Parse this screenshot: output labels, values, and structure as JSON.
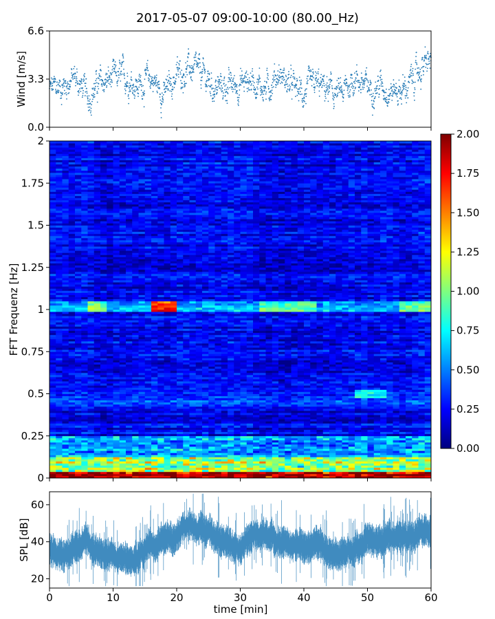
{
  "chart_data": {
    "title": "2017-05-07 09:00-10:00 (80.00_Hz)",
    "panels": [
      {
        "type": "scatter",
        "ylabel": "Wind [m/s]",
        "ylim": [
          0,
          6.6
        ],
        "yticks": [
          0.0,
          3.3,
          6.6
        ],
        "ytick_labels": [
          "0.0",
          "3.3",
          "6.6"
        ],
        "xlim": [
          0,
          60
        ],
        "marker_color": "#1f77b4",
        "series_profile": {
          "x": [
            0,
            2,
            4,
            6,
            8,
            10,
            12,
            14,
            16,
            18,
            20,
            22,
            24,
            26,
            28,
            30,
            32,
            34,
            36,
            38,
            40,
            42,
            44,
            46,
            48,
            50,
            52,
            54,
            56,
            58,
            60
          ],
          "y": [
            2.6,
            2.8,
            3.4,
            2.1,
            3.0,
            3.3,
            3.5,
            2.8,
            3.4,
            2.2,
            3.6,
            4.0,
            3.6,
            2.7,
            2.8,
            3.0,
            3.3,
            2.6,
            3.7,
            2.8,
            2.3,
            2.9,
            2.5,
            2.2,
            3.5,
            2.7,
            2.9,
            2.5,
            2.6,
            3.8,
            4.6
          ]
        }
      },
      {
        "type": "heatmap",
        "ylabel": "FFT Frequenz [Hz]",
        "ylim": [
          0,
          2
        ],
        "yticks": [
          0,
          0.25,
          0.5,
          0.75,
          1,
          1.25,
          1.5,
          1.75,
          2
        ],
        "ytick_labels": [
          "0",
          "0.25",
          "0.5",
          "0.75",
          "1",
          "1.25",
          "1.5",
          "1.75",
          "2"
        ],
        "xlim": [
          0,
          60
        ],
        "colormap": "jet",
        "colorbar": {
          "range": [
            0,
            2
          ],
          "ticks": [
            0.0,
            0.25,
            0.5,
            0.75,
            1.0,
            1.25,
            1.5,
            1.75,
            2.0
          ],
          "tick_labels": [
            "0.00",
            "0.25",
            "0.50",
            "0.75",
            "1.00",
            "1.25",
            "1.50",
            "1.75",
            "2.00"
          ],
          "stops": [
            "#00007f",
            "#0000ff",
            "#007fff",
            "#00ffff",
            "#7fff7f",
            "#ffff00",
            "#ff7f00",
            "#ff0000",
            "#7f0000"
          ]
        },
        "features": [
          {
            "freq": 0.02,
            "value": 1.8
          },
          {
            "freq": 0.08,
            "value": 1.2
          },
          {
            "freq": 1.03,
            "x_range": [
              16,
              20
            ],
            "value": 1.7
          },
          {
            "freq": 1.02,
            "x_range": [
              5.5,
              9
            ],
            "value": 0.9
          },
          {
            "freq": 0.5,
            "x_range": [
              48,
              53
            ],
            "value": 0.8
          }
        ]
      },
      {
        "type": "area",
        "ylabel": "SPL [dB]",
        "xlabel": "time [min]",
        "ylim": [
          15,
          67
        ],
        "yticks": [
          20,
          40,
          60
        ],
        "ytick_labels": [
          "20",
          "40",
          "60"
        ],
        "xlim": [
          0,
          60
        ],
        "xticks": [
          0,
          10,
          20,
          30,
          40,
          50,
          60
        ],
        "xtick_labels": [
          "0",
          "10",
          "20",
          "30",
          "40",
          "50",
          "60"
        ],
        "line_color": "#1f77b4",
        "series_profile": {
          "x": [
            0,
            2,
            4,
            6,
            8,
            10,
            12,
            14,
            16,
            18,
            20,
            22,
            24,
            26,
            28,
            30,
            32,
            34,
            36,
            38,
            40,
            42,
            44,
            46,
            48,
            50,
            52,
            54,
            56,
            58,
            60
          ],
          "y": [
            35,
            33,
            37,
            40,
            33,
            32,
            31,
            31,
            38,
            42,
            43,
            49,
            47,
            44,
            39,
            38,
            43,
            44,
            40,
            38,
            37,
            39,
            34,
            32,
            36,
            41,
            40,
            42,
            43,
            45,
            45
          ]
        }
      }
    ]
  }
}
